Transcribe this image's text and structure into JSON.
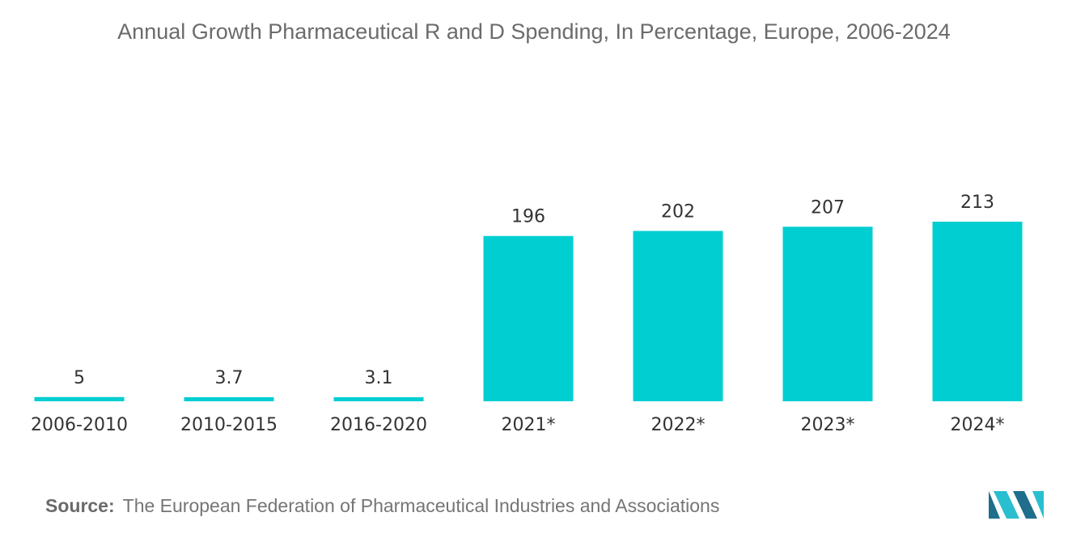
{
  "chart_data": {
    "type": "bar",
    "title": "Annual Growth Pharmaceutical R and D Spending, In Percentage, Europe, 2006-2024",
    "categories": [
      "2006-2010",
      "2010-2015",
      "2016-2020",
      "2021*",
      "2022*",
      "2023*",
      "2024*"
    ],
    "values": [
      5,
      3.7,
      3.1,
      196,
      202,
      207,
      213
    ],
    "value_labels": [
      "5",
      "3.7",
      "3.1",
      "196",
      "202",
      "207",
      "213"
    ],
    "xlabel": "",
    "ylabel": "",
    "ylim": [
      0,
      213
    ],
    "grid": false,
    "bar_color": "#00CED1"
  },
  "source": {
    "label": "Source:",
    "text": "The European Federation of Pharmaceutical Industries and Associations"
  },
  "colors": {
    "logo_dark": "#1E6E8C",
    "logo_light": "#2ABFD0"
  }
}
